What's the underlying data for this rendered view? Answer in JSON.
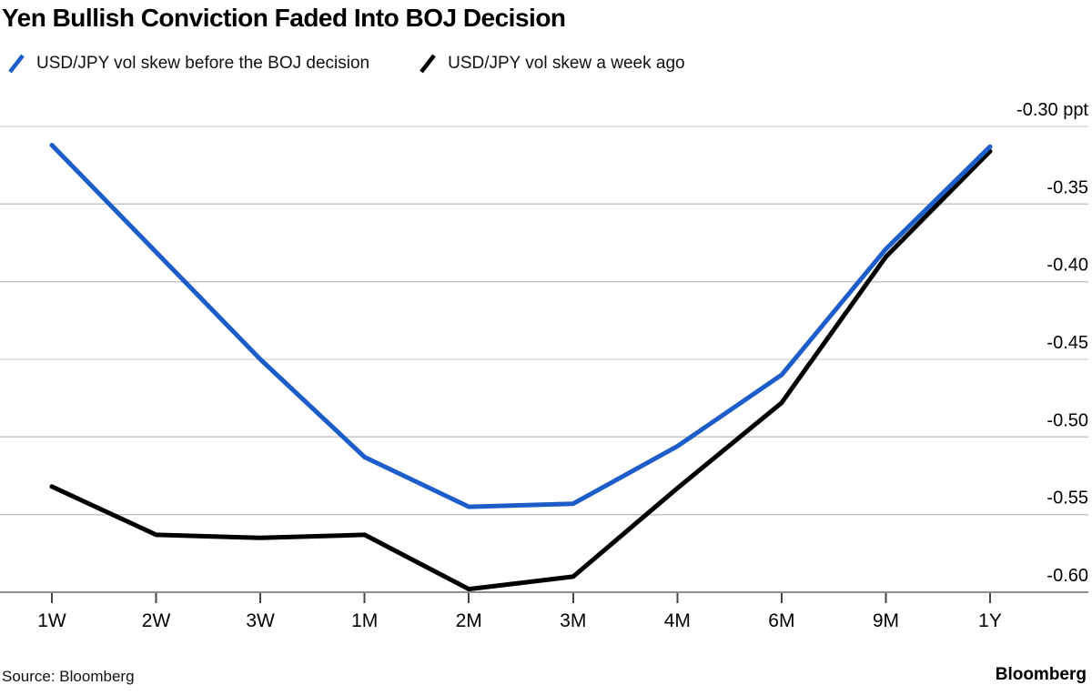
{
  "title": "Yen Bullish Conviction Faded Into BOJ Decision",
  "legend": [
    {
      "label": "USD/JPY vol skew before the BOJ decision",
      "color": "#1d5dc9"
    },
    {
      "label": "USD/JPY vol skew a week ago",
      "color": "#000000"
    }
  ],
  "footer": {
    "source": "Source: Bloomberg",
    "brand": "Bloomberg"
  },
  "colors": {
    "gridline": "#c6c6c6",
    "axis_line": "#8f8f8f",
    "tick_mark": "#444444",
    "tick_text": "#000000"
  },
  "chart_data": {
    "type": "line",
    "title": "Yen Bullish Conviction Faded Into BOJ Decision",
    "categories": [
      "1W",
      "2W",
      "3W",
      "1M",
      "2M",
      "3M",
      "4M",
      "6M",
      "9M",
      "1Y"
    ],
    "series": [
      {
        "name": "USD/JPY vol skew before the BOJ decision",
        "color": "#1d5dc9",
        "values": [
          -0.312,
          -0.381,
          -0.45,
          -0.513,
          -0.545,
          -0.543,
          -0.506,
          -0.46,
          -0.379,
          -0.313
        ]
      },
      {
        "name": "USD/JPY vol skew a week ago",
        "color": "#000000",
        "values": [
          -0.532,
          -0.563,
          -0.565,
          -0.563,
          -0.598,
          -0.59,
          -0.533,
          -0.478,
          -0.384,
          -0.316
        ]
      }
    ],
    "ylim": [
      -0.6,
      -0.3
    ],
    "ytick_step": 0.05,
    "ytick_labels": [
      "-0.30 ppt",
      "-0.35",
      "-0.40",
      "-0.45",
      "-0.50",
      "-0.55",
      "-0.60"
    ],
    "unit": "ppt",
    "xlabel": "",
    "ylabel": "",
    "grid": true,
    "legend_position": "top"
  }
}
